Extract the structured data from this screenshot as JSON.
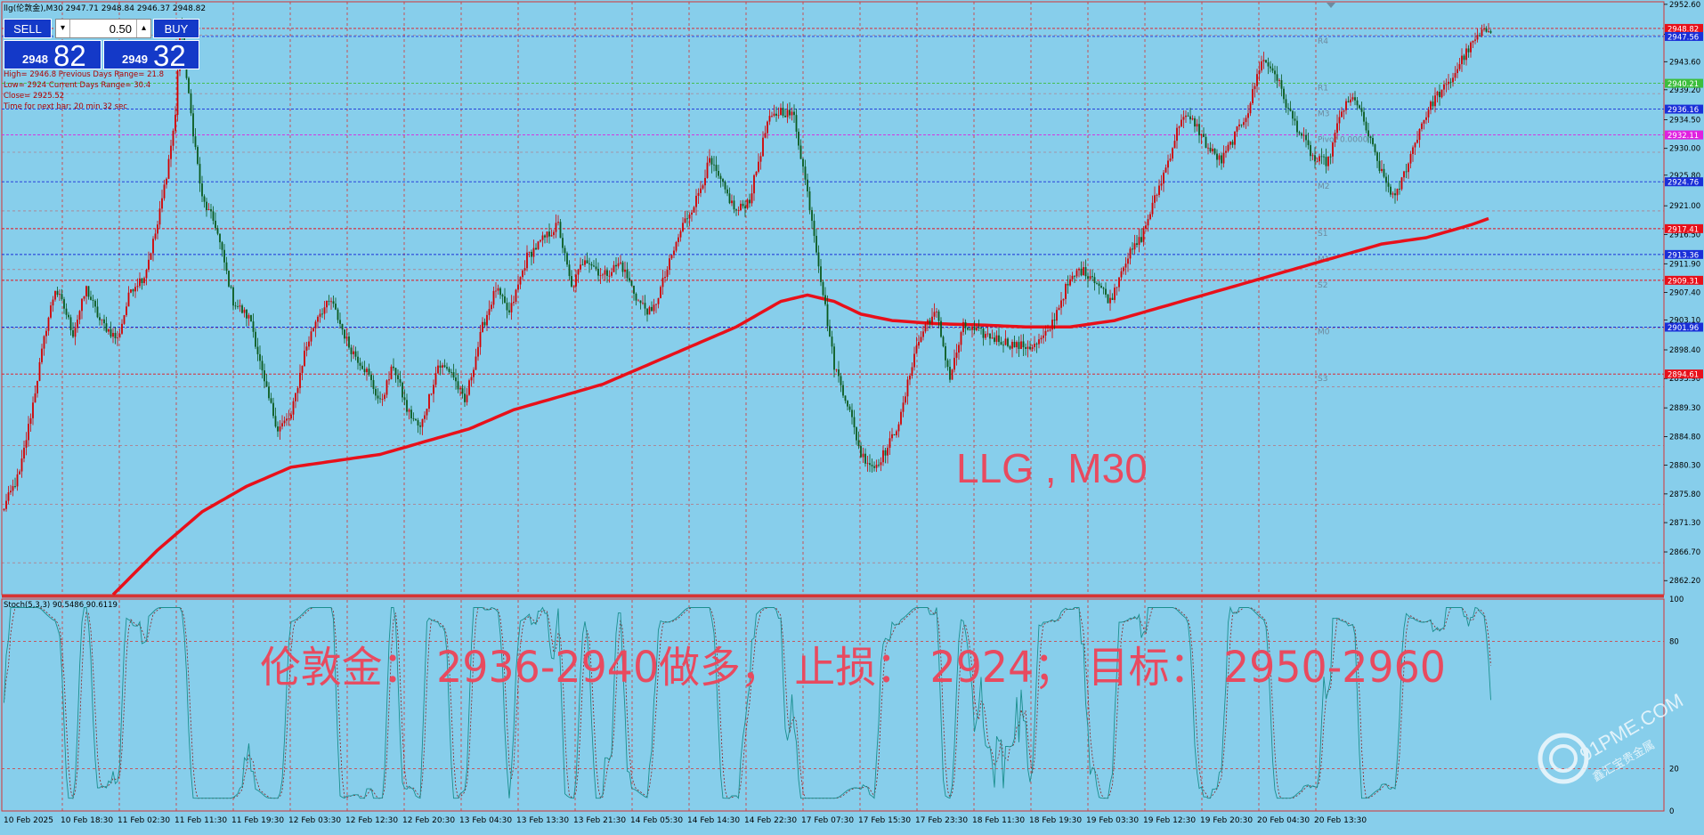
{
  "header": {
    "symbol_line": "llg(伦敦金),M30  2947.71 2948.84 2946.37 2948.82"
  },
  "trade_panel": {
    "sell_label": "SELL",
    "buy_label": "BUY",
    "lot": "0.50",
    "sell_small": "2948",
    "sell_big": "82",
    "buy_small": "2949",
    "buy_big": "32"
  },
  "info_lines": [
    "High= 2946.8    Previous Days Range= 21.8",
    "Low= 2924    Current Days Range= 30.4",
    "Close= 2925.52",
    "Time for next bar: 20 min 32 sec"
  ],
  "pivot_levels": [
    {
      "label": "R1",
      "price": 2940.21
    },
    {
      "label": "M3",
      "price": 2936.16
    },
    {
      "label": "Pivot  0.0000",
      "price": 2932.11
    },
    {
      "label": "M2",
      "price": 2924.76
    },
    {
      "label": "S1",
      "price": 2917.41
    },
    {
      "label": "M1",
      "price": 2913.36
    },
    {
      "label": "S2",
      "price": 2909.31
    },
    {
      "label": "M0",
      "price": 2901.96
    },
    {
      "label": "S3",
      "price": 2894.61
    },
    {
      "label": "R4",
      "price": 2947.56
    }
  ],
  "overlay_text": {
    "instrument_label": "LLG , M30",
    "trade_plan": "伦敦金：  2936-2940做多，  止损：  2924；  目标：  2950-2960",
    "stoch_header": "Stoch(5,3,3) 90.5486 90.6119",
    "watermark": "91PME.COM",
    "watermark_sub": "鑫汇宝贵金属"
  },
  "colors": {
    "background": "#87CEEB",
    "bull": "#D40000",
    "bear": "#0A5A1E",
    "ma": "#E8101A",
    "grid": "#D63333",
    "level_blue": "#1A2FD8",
    "overlay_text": "#E84A5F",
    "stoch_main": "#1B8F8F",
    "stoch_signal": "#8B2020"
  },
  "chart_data": [
    {
      "type": "candlestick",
      "title": "LLG , M30",
      "ylim": [
        2860.0,
        2953.0
      ],
      "y_ticks": [
        "2952.60",
        "2947.90",
        "2943.60",
        "2939.20",
        "2934.50",
        "2930.00",
        "2925.80",
        "2921.00",
        "2916.50",
        "2911.90",
        "2907.40",
        "2903.10",
        "2898.40",
        "2893.90",
        "2889.30",
        "2884.80",
        "2880.30",
        "2875.80",
        "2871.30",
        "2866.70",
        "2862.20"
      ],
      "price_tags": [
        {
          "price": 2948.82,
          "label": "2948.82",
          "color": "#E8101A"
        },
        {
          "price": 2947.56,
          "label": "2947.56",
          "color": "#1A2FD8"
        },
        {
          "price": 2940.21,
          "label": "2940.21",
          "color": "#3DBE3D"
        },
        {
          "price": 2936.16,
          "label": "2936.16",
          "color": "#1A2FD8"
        },
        {
          "price": 2932.11,
          "label": "2932.11",
          "color": "#E020E0"
        },
        {
          "price": 2924.76,
          "label": "2924.76",
          "color": "#1A2FD8"
        },
        {
          "price": 2917.41,
          "label": "2917.41",
          "color": "#E8101A"
        },
        {
          "price": 2913.36,
          "label": "2913.36",
          "color": "#1A2FD8"
        },
        {
          "price": 2909.31,
          "label": "2909.31",
          "color": "#E8101A"
        },
        {
          "price": 2901.96,
          "label": "2901.96",
          "color": "#1A2FD8"
        },
        {
          "price": 2894.61,
          "label": "2894.61",
          "color": "#E8101A"
        }
      ],
      "x_labels": [
        "10 Feb 2025",
        "10 Feb 18:30",
        "11 Feb 02:30",
        "11 Feb 11:30",
        "11 Feb 19:30",
        "12 Feb 03:30",
        "12 Feb 12:30",
        "12 Feb 20:30",
        "13 Feb 04:30",
        "13 Feb 13:30",
        "13 Feb 21:30",
        "14 Feb 05:30",
        "14 Feb 14:30",
        "14 Feb 22:30",
        "17 Feb 07:30",
        "17 Feb 15:30",
        "17 Feb 23:30",
        "18 Feb 11:30",
        "18 Feb 19:30",
        "19 Feb 03:30",
        "19 Feb 12:30",
        "19 Feb 20:30",
        "20 Feb 04:30",
        "20 Feb 13:30"
      ],
      "close_path": [
        [
          0,
          2873
        ],
        [
          8,
          2879
        ],
        [
          14,
          2890
        ],
        [
          20,
          2902
        ],
        [
          24,
          2908
        ],
        [
          28,
          2905
        ],
        [
          32,
          2901
        ],
        [
          38,
          2908
        ],
        [
          44,
          2903
        ],
        [
          52,
          2900
        ],
        [
          58,
          2908
        ],
        [
          64,
          2910
        ],
        [
          70,
          2918
        ],
        [
          74,
          2926
        ],
        [
          78,
          2935
        ],
        [
          80,
          2950
        ],
        [
          84,
          2938
        ],
        [
          90,
          2922
        ],
        [
          96,
          2918
        ],
        [
          104,
          2906
        ],
        [
          112,
          2903
        ],
        [
          118,
          2893
        ],
        [
          124,
          2886
        ],
        [
          130,
          2888
        ],
        [
          136,
          2898
        ],
        [
          142,
          2904
        ],
        [
          148,
          2906
        ],
        [
          156,
          2899
        ],
        [
          164,
          2895
        ],
        [
          170,
          2890
        ],
        [
          176,
          2896
        ],
        [
          182,
          2889
        ],
        [
          188,
          2886
        ],
        [
          196,
          2896
        ],
        [
          202,
          2895
        ],
        [
          208,
          2890
        ],
        [
          216,
          2902
        ],
        [
          222,
          2908
        ],
        [
          228,
          2904
        ],
        [
          236,
          2913
        ],
        [
          244,
          2916
        ],
        [
          250,
          2918
        ],
        [
          256,
          2908
        ],
        [
          262,
          2913
        ],
        [
          270,
          2910
        ],
        [
          278,
          2912
        ],
        [
          286,
          2906
        ],
        [
          292,
          2904
        ],
        [
          300,
          2912
        ],
        [
          306,
          2918
        ],
        [
          312,
          2922
        ],
        [
          318,
          2928
        ],
        [
          324,
          2924
        ],
        [
          330,
          2920
        ],
        [
          336,
          2922
        ],
        [
          344,
          2934
        ],
        [
          350,
          2936
        ],
        [
          356,
          2935
        ],
        [
          364,
          2919
        ],
        [
          370,
          2905
        ],
        [
          374,
          2896
        ],
        [
          380,
          2890
        ],
        [
          386,
          2882
        ],
        [
          392,
          2880
        ],
        [
          398,
          2883
        ],
        [
          404,
          2888
        ],
        [
          410,
          2898
        ],
        [
          416,
          2903
        ],
        [
          420,
          2904
        ],
        [
          426,
          2894
        ],
        [
          432,
          2902
        ],
        [
          440,
          2901
        ],
        [
          448,
          2900
        ],
        [
          456,
          2899
        ],
        [
          464,
          2899
        ],
        [
          470,
          2901
        ],
        [
          478,
          2908
        ],
        [
          484,
          2911
        ],
        [
          490,
          2910
        ],
        [
          498,
          2906
        ],
        [
          504,
          2912
        ],
        [
          512,
          2916
        ],
        [
          518,
          2922
        ],
        [
          524,
          2928
        ],
        [
          530,
          2935
        ],
        [
          536,
          2934
        ],
        [
          542,
          2930
        ],
        [
          548,
          2928
        ],
        [
          554,
          2932
        ],
        [
          560,
          2936
        ],
        [
          566,
          2944
        ],
        [
          572,
          2942
        ],
        [
          578,
          2936
        ],
        [
          584,
          2932
        ],
        [
          590,
          2928
        ],
        [
          596,
          2928
        ],
        [
          602,
          2936
        ],
        [
          608,
          2938
        ],
        [
          614,
          2932
        ],
        [
          620,
          2926
        ],
        [
          626,
          2922
        ],
        [
          632,
          2928
        ],
        [
          638,
          2934
        ],
        [
          644,
          2938
        ],
        [
          650,
          2940
        ],
        [
          656,
          2944
        ],
        [
          662,
          2947
        ],
        [
          668,
          2948.8
        ]
      ],
      "ma_path": [
        [
          50,
          2860
        ],
        [
          70,
          2867
        ],
        [
          90,
          2873
        ],
        [
          110,
          2877
        ],
        [
          130,
          2880
        ],
        [
          150,
          2881
        ],
        [
          170,
          2882
        ],
        [
          190,
          2884
        ],
        [
          210,
          2886
        ],
        [
          230,
          2889
        ],
        [
          250,
          2891
        ],
        [
          270,
          2893
        ],
        [
          290,
          2896
        ],
        [
          310,
          2899
        ],
        [
          330,
          2902
        ],
        [
          350,
          2906
        ],
        [
          362,
          2907
        ],
        [
          374,
          2906
        ],
        [
          386,
          2904
        ],
        [
          400,
          2903
        ],
        [
          420,
          2902.5
        ],
        [
          440,
          2902.3
        ],
        [
          460,
          2902
        ],
        [
          480,
          2902
        ],
        [
          500,
          2903
        ],
        [
          520,
          2905
        ],
        [
          540,
          2907
        ],
        [
          560,
          2909
        ],
        [
          580,
          2911
        ],
        [
          600,
          2913
        ],
        [
          620,
          2915
        ],
        [
          640,
          2916
        ],
        [
          660,
          2918
        ],
        [
          668,
          2919
        ]
      ]
    },
    {
      "type": "line",
      "title": "Stoch(5,3,3) 90.5486 90.6119",
      "ylim": [
        0,
        100
      ],
      "y_ticks": [
        "100",
        "80",
        "20",
        "0"
      ],
      "levels": [
        80,
        20
      ]
    }
  ]
}
